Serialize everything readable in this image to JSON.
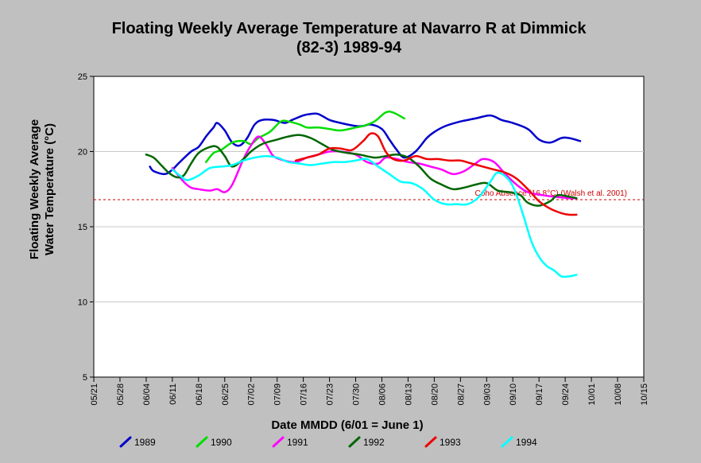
{
  "chart_data": {
    "type": "line",
    "title_line1": "Floating Weekly Average Temperature at Navarro R at Dimmick",
    "title_line2": "(82-3) 1989-94",
    "xlabel": "Date MMDD (6/01 = June 1)",
    "ylabel_line1": "Floating Weekly Average",
    "ylabel_line2": "Water Temperature (°C)",
    "ylim": [
      5,
      25
    ],
    "yticks": [
      "5",
      "10",
      "15",
      "20",
      "25"
    ],
    "xticks": [
      "05/21",
      "05/28",
      "06/04",
      "06/11",
      "06/18",
      "06/25",
      "07/02",
      "07/09",
      "07/16",
      "07/23",
      "07/30",
      "08/06",
      "08/13",
      "08/20",
      "08/27",
      "09/03",
      "09/10",
      "09/17",
      "09/24",
      "10/01",
      "10/08",
      "10/15"
    ],
    "grid": "horizontal",
    "legend_position": "bottom",
    "threshold": {
      "value": 16.8,
      "label": "Coho Absence (16.8°C) (Walsh et al. 2001)",
      "color": "#cc0000"
    },
    "series": [
      {
        "name": "1989",
        "color": "#0000cc",
        "points": [
          [
            "06/05",
            19.0
          ],
          [
            "06/06",
            18.7
          ],
          [
            "06/09",
            18.5
          ],
          [
            "06/11",
            18.8
          ],
          [
            "06/13",
            19.3
          ],
          [
            "06/16",
            20.0
          ],
          [
            "06/18",
            20.3
          ],
          [
            "06/20",
            21.0
          ],
          [
            "06/22",
            21.6
          ],
          [
            "06/23",
            21.9
          ],
          [
            "06/25",
            21.4
          ],
          [
            "06/27",
            20.6
          ],
          [
            "06/29",
            20.4
          ],
          [
            "07/01",
            20.9
          ],
          [
            "07/03",
            21.8
          ],
          [
            "07/05",
            22.1
          ],
          [
            "07/08",
            22.1
          ],
          [
            "07/11",
            21.9
          ],
          [
            "07/13",
            22.1
          ],
          [
            "07/16",
            22.4
          ],
          [
            "07/18",
            22.5
          ],
          [
            "07/20",
            22.5
          ],
          [
            "07/23",
            22.1
          ],
          [
            "07/26",
            21.9
          ],
          [
            "07/30",
            21.7
          ],
          [
            "08/01",
            21.7
          ],
          [
            "08/03",
            21.8
          ],
          [
            "08/06",
            21.5
          ],
          [
            "08/08",
            20.8
          ],
          [
            "08/10",
            20.1
          ],
          [
            "08/12",
            19.6
          ],
          [
            "08/15",
            20.0
          ],
          [
            "08/18",
            20.9
          ],
          [
            "08/20",
            21.3
          ],
          [
            "08/23",
            21.7
          ],
          [
            "08/27",
            22.0
          ],
          [
            "08/31",
            22.2
          ],
          [
            "09/04",
            22.4
          ],
          [
            "09/07",
            22.1
          ],
          [
            "09/10",
            21.9
          ],
          [
            "09/14",
            21.5
          ],
          [
            "09/17",
            20.8
          ],
          [
            "09/20",
            20.6
          ],
          [
            "09/23",
            20.9
          ],
          [
            "09/25",
            20.9
          ],
          [
            "09/28",
            20.7
          ]
        ]
      },
      {
        "name": "1990",
        "color": "#00dd00",
        "points": [
          [
            "06/20",
            19.3
          ],
          [
            "06/22",
            19.9
          ],
          [
            "06/24",
            20.1
          ],
          [
            "06/27",
            20.6
          ],
          [
            "06/30",
            20.7
          ],
          [
            "07/02",
            20.5
          ],
          [
            "07/04",
            20.9
          ],
          [
            "07/07",
            21.3
          ],
          [
            "07/10",
            22.0
          ],
          [
            "07/12",
            22.0
          ],
          [
            "07/15",
            21.8
          ],
          [
            "07/17",
            21.6
          ],
          [
            "07/20",
            21.6
          ],
          [
            "07/23",
            21.5
          ],
          [
            "07/26",
            21.4
          ],
          [
            "07/30",
            21.6
          ],
          [
            "08/01",
            21.7
          ],
          [
            "08/04",
            22.0
          ],
          [
            "08/07",
            22.6
          ],
          [
            "08/09",
            22.6
          ],
          [
            "08/12",
            22.2
          ]
        ]
      },
      {
        "name": "1991",
        "color": "#ff00ff",
        "points": [
          [
            "06/11",
            18.9
          ],
          [
            "06/14",
            18.0
          ],
          [
            "06/16",
            17.6
          ],
          [
            "06/18",
            17.5
          ],
          [
            "06/21",
            17.4
          ],
          [
            "06/23",
            17.5
          ],
          [
            "06/25",
            17.3
          ],
          [
            "06/27",
            17.8
          ],
          [
            "06/30",
            19.5
          ],
          [
            "07/02",
            20.4
          ],
          [
            "07/04",
            21.0
          ],
          [
            "07/06",
            20.5
          ],
          [
            "07/08",
            19.7
          ],
          [
            "07/11",
            19.4
          ],
          [
            "07/14",
            19.3
          ],
          [
            "07/17",
            19.6
          ],
          [
            "07/20",
            19.8
          ],
          [
            "07/23",
            20.0
          ],
          [
            "07/26",
            20.0
          ],
          [
            "07/30",
            19.8
          ],
          [
            "08/02",
            19.3
          ],
          [
            "08/05",
            19.2
          ],
          [
            "08/07",
            19.6
          ],
          [
            "08/10",
            19.5
          ],
          [
            "08/13",
            19.3
          ],
          [
            "08/16",
            19.2
          ],
          [
            "08/19",
            19.0
          ],
          [
            "08/22",
            18.8
          ],
          [
            "08/25",
            18.5
          ],
          [
            "08/28",
            18.7
          ],
          [
            "08/31",
            19.2
          ],
          [
            "09/02",
            19.5
          ],
          [
            "09/05",
            19.3
          ],
          [
            "09/08",
            18.5
          ],
          [
            "09/11",
            17.8
          ],
          [
            "09/14",
            17.3
          ],
          [
            "09/18",
            17.1
          ],
          [
            "09/21",
            17.0
          ],
          [
            "09/25",
            16.9
          ],
          [
            "09/27",
            16.9
          ]
        ]
      },
      {
        "name": "1992",
        "color": "#006600",
        "points": [
          [
            "06/04",
            19.8
          ],
          [
            "06/06",
            19.6
          ],
          [
            "06/08",
            19.1
          ],
          [
            "06/10",
            18.6
          ],
          [
            "06/12",
            18.3
          ],
          [
            "06/14",
            18.4
          ],
          [
            "06/16",
            19.2
          ],
          [
            "06/18",
            19.9
          ],
          [
            "06/21",
            20.3
          ],
          [
            "06/23",
            20.3
          ],
          [
            "06/25",
            19.7
          ],
          [
            "06/27",
            19.0
          ],
          [
            "06/30",
            19.5
          ],
          [
            "07/02",
            20.0
          ],
          [
            "07/05",
            20.5
          ],
          [
            "07/09",
            20.8
          ],
          [
            "07/12",
            21.0
          ],
          [
            "07/15",
            21.1
          ],
          [
            "07/18",
            20.9
          ],
          [
            "07/21",
            20.5
          ],
          [
            "07/24",
            20.1
          ],
          [
            "07/28",
            19.9
          ],
          [
            "07/31",
            19.8
          ],
          [
            "08/04",
            19.6
          ],
          [
            "08/07",
            19.7
          ],
          [
            "08/10",
            19.8
          ],
          [
            "08/13",
            19.6
          ],
          [
            "08/16",
            19.0
          ],
          [
            "08/19",
            18.2
          ],
          [
            "08/22",
            17.8
          ],
          [
            "08/25",
            17.5
          ],
          [
            "08/28",
            17.6
          ],
          [
            "08/31",
            17.8
          ],
          [
            "09/03",
            17.9
          ],
          [
            "09/06",
            17.4
          ],
          [
            "09/09",
            17.3
          ],
          [
            "09/12",
            17.1
          ],
          [
            "09/14",
            16.6
          ],
          [
            "09/17",
            16.4
          ],
          [
            "09/20",
            16.7
          ],
          [
            "09/22",
            17.1
          ],
          [
            "09/25",
            17.0
          ],
          [
            "09/27",
            16.9
          ]
        ]
      },
      {
        "name": "1993",
        "color": "#ee0000",
        "points": [
          [
            "07/14",
            19.4
          ],
          [
            "07/17",
            19.6
          ],
          [
            "07/20",
            19.8
          ],
          [
            "07/23",
            20.2
          ],
          [
            "07/26",
            20.2
          ],
          [
            "07/29",
            20.1
          ],
          [
            "08/01",
            20.7
          ],
          [
            "08/03",
            21.2
          ],
          [
            "08/05",
            21.0
          ],
          [
            "08/07",
            20.0
          ],
          [
            "08/09",
            19.5
          ],
          [
            "08/12",
            19.4
          ],
          [
            "08/15",
            19.7
          ],
          [
            "08/18",
            19.5
          ],
          [
            "08/21",
            19.5
          ],
          [
            "08/24",
            19.4
          ],
          [
            "08/27",
            19.4
          ],
          [
            "08/30",
            19.2
          ],
          [
            "09/02",
            19.0
          ],
          [
            "09/05",
            18.8
          ],
          [
            "09/08",
            18.6
          ],
          [
            "09/11",
            18.2
          ],
          [
            "09/14",
            17.5
          ],
          [
            "09/17",
            16.7
          ],
          [
            "09/20",
            16.2
          ],
          [
            "09/23",
            15.9
          ],
          [
            "09/25",
            15.8
          ],
          [
            "09/27",
            15.8
          ]
        ]
      },
      {
        "name": "1994",
        "color": "#00ffff",
        "points": [
          [
            "06/11",
            18.8
          ],
          [
            "06/13",
            18.4
          ],
          [
            "06/15",
            18.1
          ],
          [
            "06/18",
            18.4
          ],
          [
            "06/21",
            18.9
          ],
          [
            "06/24",
            19.0
          ],
          [
            "06/27",
            19.1
          ],
          [
            "06/30",
            19.4
          ],
          [
            "07/03",
            19.6
          ],
          [
            "07/06",
            19.7
          ],
          [
            "07/09",
            19.6
          ],
          [
            "07/12",
            19.3
          ],
          [
            "07/15",
            19.2
          ],
          [
            "07/18",
            19.1
          ],
          [
            "07/21",
            19.2
          ],
          [
            "07/24",
            19.3
          ],
          [
            "07/27",
            19.3
          ],
          [
            "07/30",
            19.4
          ],
          [
            "08/02",
            19.5
          ],
          [
            "08/05",
            19.0
          ],
          [
            "08/08",
            18.5
          ],
          [
            "08/11",
            18.0
          ],
          [
            "08/14",
            17.9
          ],
          [
            "08/17",
            17.5
          ],
          [
            "08/20",
            16.8
          ],
          [
            "08/23",
            16.5
          ],
          [
            "08/26",
            16.5
          ],
          [
            "08/29",
            16.5
          ],
          [
            "09/01",
            17.0
          ],
          [
            "09/04",
            18.0
          ],
          [
            "09/06",
            18.6
          ],
          [
            "09/09",
            18.1
          ],
          [
            "09/11",
            17.1
          ],
          [
            "09/13",
            15.6
          ],
          [
            "09/15",
            14.0
          ],
          [
            "09/17",
            13.0
          ],
          [
            "09/19",
            12.4
          ],
          [
            "09/21",
            12.1
          ],
          [
            "09/23",
            11.7
          ],
          [
            "09/25",
            11.7
          ],
          [
            "09/27",
            11.8
          ]
        ]
      }
    ]
  }
}
